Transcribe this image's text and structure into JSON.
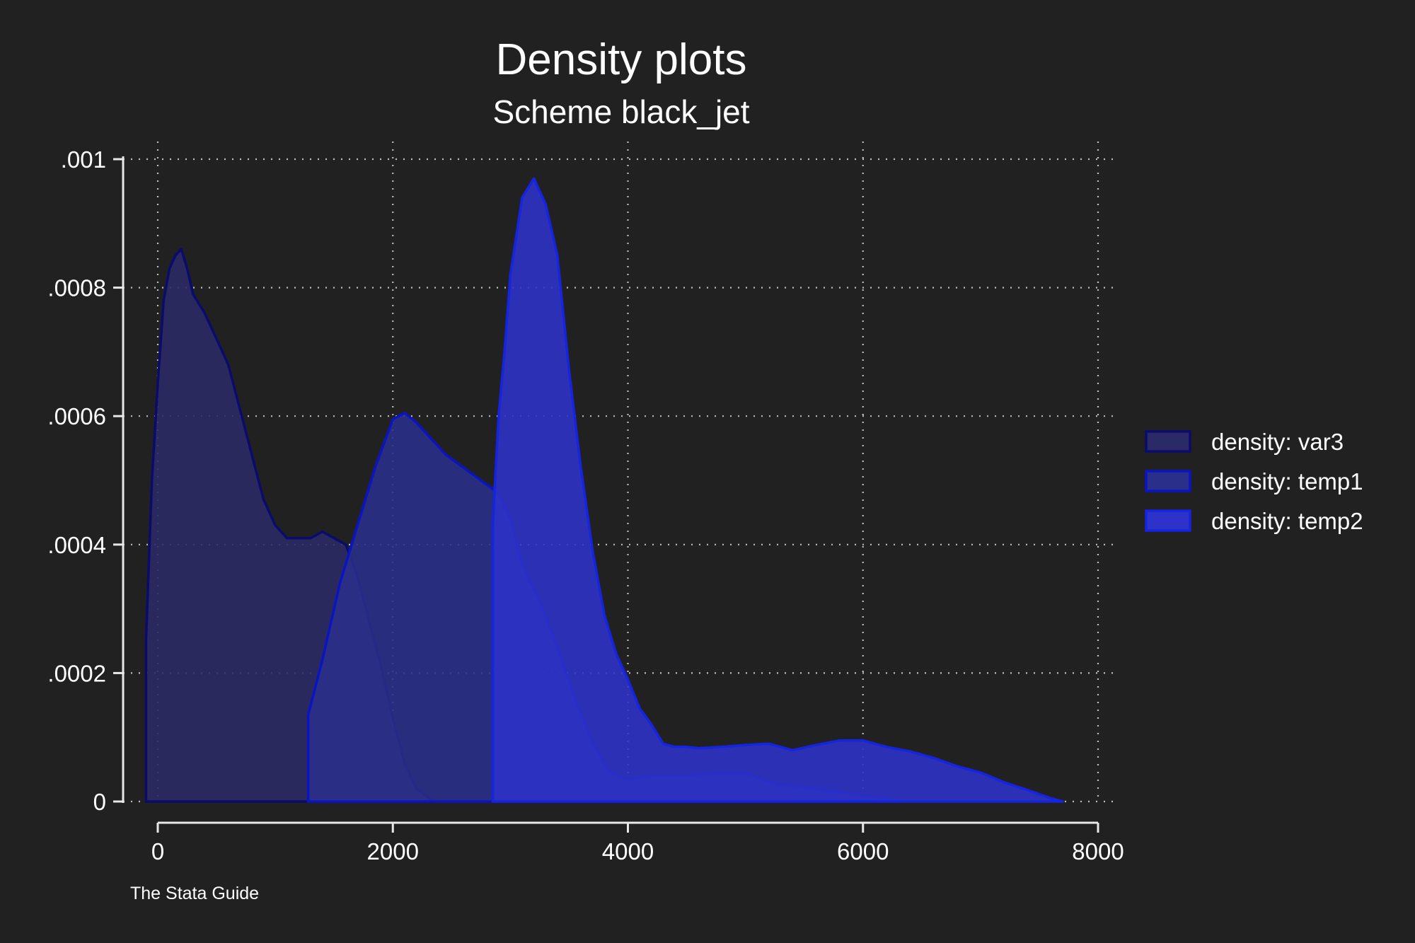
{
  "chart_data": {
    "type": "area",
    "title": "Density plots",
    "subtitle": "Scheme black_jet",
    "note": "The Stata Guide",
    "xlabel": "",
    "ylabel": "",
    "xlim": [
      -300,
      8000
    ],
    "ylim": [
      0,
      0.001
    ],
    "x_ticks": [
      0,
      2000,
      4000,
      6000,
      8000
    ],
    "x_tick_labels": [
      "0",
      "2000",
      "4000",
      "6000",
      "8000"
    ],
    "y_ticks": [
      0,
      0.0002,
      0.0004,
      0.0006,
      0.0008,
      0.001
    ],
    "y_tick_labels": [
      "0",
      ".0002",
      ".0004",
      ".0006",
      ".0008",
      ".001"
    ],
    "grid": true,
    "legend_position": "right",
    "series": [
      {
        "name": "density: var3",
        "fill": "#2a2a66",
        "stroke": "#0b0b6e",
        "points": [
          [
            -100,
            0
          ],
          [
            -100,
            0.00025
          ],
          [
            -50,
            0.0005
          ],
          [
            0,
            0.00065
          ],
          [
            50,
            0.00078
          ],
          [
            100,
            0.00083
          ],
          [
            150,
            0.00085
          ],
          [
            200,
            0.00086
          ],
          [
            250,
            0.00083
          ],
          [
            300,
            0.00079
          ],
          [
            400,
            0.00076
          ],
          [
            500,
            0.00072
          ],
          [
            600,
            0.00068
          ],
          [
            700,
            0.00061
          ],
          [
            800,
            0.00054
          ],
          [
            900,
            0.00047
          ],
          [
            1000,
            0.00043
          ],
          [
            1100,
            0.00041
          ],
          [
            1200,
            0.00041
          ],
          [
            1300,
            0.00041
          ],
          [
            1400,
            0.00042
          ],
          [
            1500,
            0.00041
          ],
          [
            1600,
            0.0004
          ],
          [
            1700,
            0.00035
          ],
          [
            1800,
            0.00028
          ],
          [
            1900,
            0.00021
          ],
          [
            2000,
            0.00013
          ],
          [
            2100,
            6e-05
          ],
          [
            2200,
            2e-05
          ],
          [
            2350,
            0.0
          ]
        ]
      },
      {
        "name": "density: temp1",
        "fill": "#2a2f8a",
        "stroke": "#0a14c4",
        "points": [
          [
            1280,
            0
          ],
          [
            1280,
            0.000135
          ],
          [
            1400,
            0.00022
          ],
          [
            1550,
            0.00034
          ],
          [
            1700,
            0.00043
          ],
          [
            1850,
            0.00052
          ],
          [
            2000,
            0.000595
          ],
          [
            2100,
            0.000605
          ],
          [
            2200,
            0.00059
          ],
          [
            2300,
            0.00057
          ],
          [
            2450,
            0.00054
          ],
          [
            2600,
            0.00052
          ],
          [
            2750,
            0.0005
          ],
          [
            2900,
            0.00048
          ],
          [
            3000,
            0.00044
          ],
          [
            3100,
            0.00037
          ],
          [
            3250,
            0.00031
          ],
          [
            3400,
            0.00024
          ],
          [
            3550,
            0.00016
          ],
          [
            3700,
            9e-05
          ],
          [
            3850,
            4.5e-05
          ],
          [
            4000,
            3.5e-05
          ],
          [
            4200,
            4e-05
          ],
          [
            4500,
            4e-05
          ],
          [
            4800,
            4.5e-05
          ],
          [
            5000,
            4.5e-05
          ],
          [
            5200,
            3e-05
          ],
          [
            5500,
            2.2e-05
          ],
          [
            5800,
            1.5e-05
          ],
          [
            6000,
            1e-05
          ],
          [
            6200,
            5e-06
          ],
          [
            6300,
            0.0
          ]
        ]
      },
      {
        "name": "density: temp2",
        "fill": "#2d32c9",
        "stroke": "#1424e0",
        "points": [
          [
            2850,
            0
          ],
          [
            2850,
            0.00043
          ],
          [
            2900,
            0.0006
          ],
          [
            2950,
            0.0007
          ],
          [
            3000,
            0.00082
          ],
          [
            3100,
            0.00094
          ],
          [
            3200,
            0.00097
          ],
          [
            3300,
            0.00093
          ],
          [
            3400,
            0.00085
          ],
          [
            3500,
            0.00067
          ],
          [
            3600,
            0.00052
          ],
          [
            3700,
            0.00039
          ],
          [
            3800,
            0.00029
          ],
          [
            3900,
            0.00023
          ],
          [
            4000,
            0.00019
          ],
          [
            4100,
            0.000145
          ],
          [
            4200,
            0.00012
          ],
          [
            4300,
            9e-05
          ],
          [
            4400,
            8.5e-05
          ],
          [
            4500,
            8.5e-05
          ],
          [
            4600,
            8.3e-05
          ],
          [
            4800,
            8.5e-05
          ],
          [
            5000,
            8.8e-05
          ],
          [
            5200,
            9e-05
          ],
          [
            5300,
            8.5e-05
          ],
          [
            5400,
            8e-05
          ],
          [
            5600,
            8.8e-05
          ],
          [
            5800,
            9.5e-05
          ],
          [
            6000,
            9.5e-05
          ],
          [
            6200,
            8.5e-05
          ],
          [
            6400,
            7.8e-05
          ],
          [
            6600,
            6.8e-05
          ],
          [
            6800,
            5.5e-05
          ],
          [
            7000,
            4.5e-05
          ],
          [
            7200,
            3e-05
          ],
          [
            7400,
            1.8e-05
          ],
          [
            7600,
            5e-06
          ],
          [
            7700,
            0.0
          ]
        ]
      }
    ]
  }
}
